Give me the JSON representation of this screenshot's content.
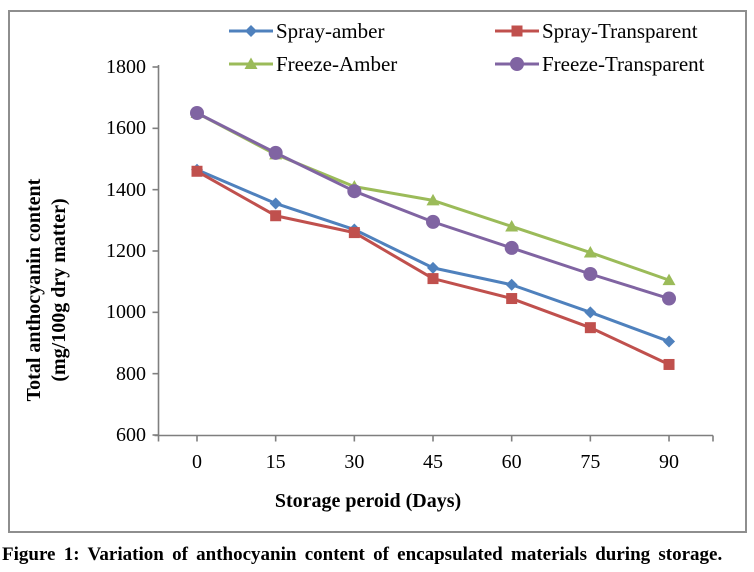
{
  "figure": {
    "caption": "Figure 1: Variation of anthocyanin content of encapsulated materials during storage."
  },
  "chart_data": {
    "type": "line",
    "title": "",
    "xlabel": "Storage peroid (Days)",
    "ylabel": "Total anthocyanin content (mg/100g dry matter)",
    "ylabel_lines": [
      "Total anthocyanin content",
      "(mg/100g dry matter)"
    ],
    "categories": [
      0,
      15,
      30,
      45,
      60,
      75,
      90
    ],
    "x_tick_labels": [
      "0",
      "15",
      "30",
      "45",
      "60",
      "75",
      "90"
    ],
    "y_tick_values": [
      600,
      800,
      1000,
      1200,
      1400,
      1600,
      1800
    ],
    "y_tick_labels": [
      "600",
      "800",
      "1000",
      "1200",
      "1400",
      "1600",
      "1800"
    ],
    "ylim": [
      600,
      1800
    ],
    "y_major_step": 200,
    "grid": false,
    "legend_position": "top",
    "axis_color": "#7f7f7f",
    "text_color": "#000000",
    "series": [
      {
        "name": "Spray-amber",
        "marker": "diamond",
        "color": "#4F81BD",
        "values": [
          1465,
          1355,
          1270,
          1145,
          1090,
          1000,
          905
        ]
      },
      {
        "name": "Spray-Transparent",
        "marker": "square",
        "color": "#C0504D",
        "values": [
          1460,
          1315,
          1260,
          1110,
          1045,
          950,
          830
        ]
      },
      {
        "name": "Freeze-Amber",
        "marker": "triangle",
        "color": "#9BBB59",
        "values": [
          1650,
          1515,
          1410,
          1365,
          1280,
          1195,
          1105
        ]
      },
      {
        "name": "Freeze-Transparent",
        "marker": "circle",
        "color": "#8064A2",
        "values": [
          1650,
          1520,
          1395,
          1295,
          1210,
          1125,
          1045
        ]
      }
    ]
  }
}
